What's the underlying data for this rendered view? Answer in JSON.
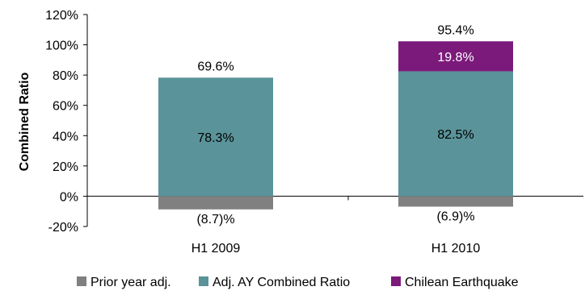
{
  "chart_data": {
    "type": "bar",
    "stacked": true,
    "title": "",
    "xlabel": "",
    "ylabel": "Combined Ratio",
    "ylim": [
      -20,
      120
    ],
    "ytick_step": 20,
    "ytick_labels": [
      "-20%",
      "0%",
      "20%",
      "40%",
      "60%",
      "80%",
      "100%",
      "120%"
    ],
    "categories": [
      "H1 2009",
      "H1 2010"
    ],
    "series": [
      {
        "name": "Prior year adj.",
        "color": "#808080",
        "values": [
          -8.7,
          -6.9
        ],
        "labels": [
          "(8.7)%",
          "(6.9)%"
        ]
      },
      {
        "name": "Adj. AY Combined Ratio",
        "color": "#5A9399",
        "values": [
          78.3,
          82.5
        ],
        "labels": [
          "78.3%",
          "82.5%"
        ]
      },
      {
        "name": "Chilean Earthquake",
        "color": "#7B1A7B",
        "values": [
          0,
          19.8
        ],
        "labels": [
          "",
          "19.8%"
        ]
      }
    ],
    "totals": [
      "69.6%",
      "95.4%"
    ],
    "grid": false,
    "legend_position": "bottom"
  }
}
